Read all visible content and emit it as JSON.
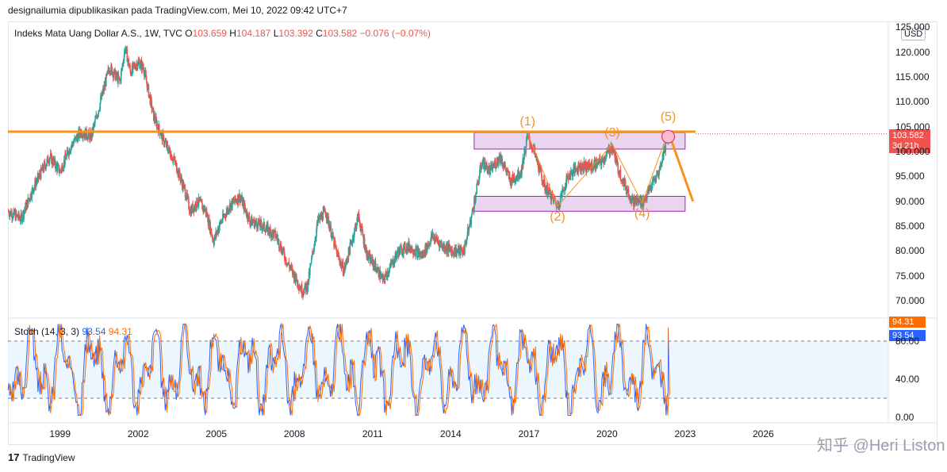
{
  "header": {
    "publish_line": "designailumia dipublikasikan pada TradingView.com, Mei 10, 2022 09:42 UTC+7"
  },
  "legend": {
    "symbol": "Indeks Mata Uang Dollar A.S., 1W, TVC",
    "open_label": "O",
    "open": "103.659",
    "high_label": "H",
    "high": "104.187",
    "low_label": "L",
    "low": "103.392",
    "close_label": "C",
    "close": "103.582",
    "change": "−0.076 (−0.07%)"
  },
  "currency_badge": "USD",
  "price_tag": {
    "price": "103.582",
    "countdown": "3d 21h"
  },
  "stoch_legend": {
    "label": "Stoch (14, 3, 3)",
    "k": "93.54",
    "d": "94.31"
  },
  "stoch_tags": {
    "d": "94.31",
    "k": "93.54"
  },
  "colors": {
    "up": "#26a69a",
    "down": "#ef5350",
    "level": "#f7931a",
    "zone": "#9c27b0",
    "k": "#2962ff",
    "d": "#ff6d00"
  },
  "wave_labels": [
    "(1)",
    "(2)",
    "(3)",
    "(4)",
    "(5)"
  ],
  "footer": {
    "brand": "TradingView",
    "logo_mark": "17"
  },
  "watermark": "知乎 @Heri Liston",
  "chart_data": [
    {
      "type": "candlestick",
      "title": "Indeks Mata Uang Dollar A.S., 1W, TVC",
      "y_ticks": [
        "125.000",
        "120.000",
        "115.000",
        "110.000",
        "105.000",
        "100.000",
        "95.000",
        "90.000",
        "85.000",
        "80.000",
        "75.000",
        "70.000"
      ],
      "ylim": [
        67,
        126
      ],
      "x_ticks": [
        "1999",
        "2002",
        "2005",
        "2008",
        "2011",
        "2014",
        "2017",
        "2020",
        "2023",
        "2026"
      ],
      "xlim": [
        1997.0,
        2030.8
      ],
      "close_path": [
        [
          1997.0,
          88
        ],
        [
          1997.5,
          86.5
        ],
        [
          1998.0,
          93
        ],
        [
          1998.6,
          99
        ],
        [
          1999.0,
          96
        ],
        [
          1999.4,
          101
        ],
        [
          1999.8,
          104
        ],
        [
          2000.2,
          103
        ],
        [
          2000.6,
          111
        ],
        [
          2000.9,
          117
        ],
        [
          2001.3,
          114
        ],
        [
          2001.5,
          121
        ],
        [
          2001.7,
          116
        ],
        [
          2002.0,
          118
        ],
        [
          2002.2,
          117
        ],
        [
          2002.6,
          107
        ],
        [
          2003.0,
          102
        ],
        [
          2003.4,
          98
        ],
        [
          2003.8,
          92
        ],
        [
          2004.0,
          88
        ],
        [
          2004.3,
          90
        ],
        [
          2004.6,
          88
        ],
        [
          2004.9,
          82
        ],
        [
          2005.1,
          85
        ],
        [
          2005.5,
          89
        ],
        [
          2005.9,
          91
        ],
        [
          2006.3,
          86
        ],
        [
          2006.8,
          85
        ],
        [
          2007.3,
          83
        ],
        [
          2007.7,
          78
        ],
        [
          2008.0,
          75
        ],
        [
          2008.3,
          72
        ],
        [
          2008.5,
          73
        ],
        [
          2008.9,
          86
        ],
        [
          2009.2,
          88
        ],
        [
          2009.6,
          80
        ],
        [
          2009.9,
          76
        ],
        [
          2010.2,
          82
        ],
        [
          2010.45,
          87
        ],
        [
          2010.8,
          79
        ],
        [
          2011.1,
          77
        ],
        [
          2011.4,
          74
        ],
        [
          2011.7,
          77
        ],
        [
          2012.0,
          80
        ],
        [
          2012.4,
          81
        ],
        [
          2012.9,
          79
        ],
        [
          2013.3,
          83
        ],
        [
          2013.7,
          81
        ],
        [
          2014.1,
          80
        ],
        [
          2014.5,
          80
        ],
        [
          2014.8,
          87
        ],
        [
          2015.2,
          98
        ],
        [
          2015.5,
          96
        ],
        [
          2015.9,
          99
        ],
        [
          2016.3,
          94
        ],
        [
          2016.7,
          96
        ],
        [
          2016.95,
          103
        ],
        [
          2017.2,
          100
        ],
        [
          2017.6,
          93
        ],
        [
          2018.0,
          90
        ],
        [
          2018.1,
          89
        ],
        [
          2018.5,
          95
        ],
        [
          2018.9,
          97
        ],
        [
          2019.4,
          97
        ],
        [
          2019.8,
          98
        ],
        [
          2020.2,
          101
        ],
        [
          2020.4,
          97
        ],
        [
          2020.7,
          93
        ],
        [
          2021.0,
          90
        ],
        [
          2021.4,
          90
        ],
        [
          2021.7,
          93
        ],
        [
          2022.0,
          96
        ],
        [
          2022.35,
          103.6
        ]
      ],
      "horizontal_level": 104.0,
      "zones": [
        {
          "from": 2014.9,
          "to": 2023.0,
          "low": 100.5,
          "high": 103.8
        },
        {
          "from": 2014.9,
          "to": 2023.0,
          "low": 88.0,
          "high": 91.0
        }
      ],
      "wave_points": [
        [
          2016.95,
          103.6
        ],
        [
          2018.1,
          89.0
        ],
        [
          2020.2,
          101.5
        ],
        [
          2021.35,
          89.6
        ],
        [
          2022.35,
          104.0
        ]
      ],
      "projection": [
        [
          2022.35,
          104.0
        ],
        [
          2023.3,
          90.0
        ]
      ]
    },
    {
      "type": "line",
      "title": "Stoch (14, 3, 3)",
      "y_ticks": [
        "80.00",
        "40.00",
        "0.00"
      ],
      "ylim": [
        -5,
        105
      ],
      "bands": [
        20,
        80
      ],
      "series": [
        {
          "name": "%K",
          "value": 93.54
        },
        {
          "name": "%D",
          "value": 94.31
        }
      ]
    }
  ]
}
